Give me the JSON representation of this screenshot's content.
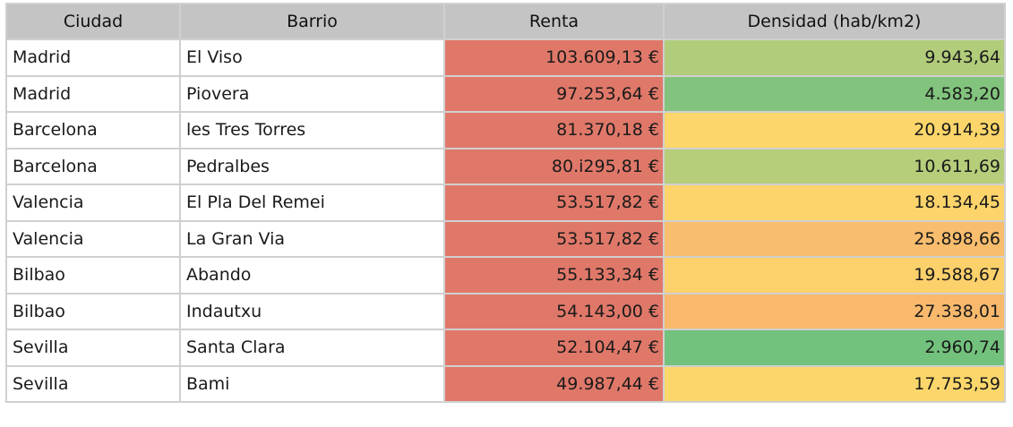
{
  "table": {
    "headers": [
      "Ciudad",
      "Barrio",
      "Renta",
      "Densidad (hab/km2)"
    ],
    "rows": [
      {
        "ciudad": "Madrid",
        "barrio": "El Viso",
        "renta": "103.609,13 €",
        "densidad": "9.943,64",
        "renta_color": "#e07869",
        "densidad_color": "#b1cc7a"
      },
      {
        "ciudad": "Madrid",
        "barrio": "Piovera",
        "renta": "97.253,64 €",
        "densidad": "4.583,20",
        "renta_color": "#e07869",
        "densidad_color": "#82c47d"
      },
      {
        "ciudad": "Barcelona",
        "barrio": "les Tres Torres",
        "renta": "81.370,18 €",
        "densidad": "20.914,39",
        "renta_color": "#e07869",
        "densidad_color": "#fcd66a"
      },
      {
        "ciudad": "Barcelona",
        "barrio": "Pedralbes",
        "renta": "80.i295,81 €",
        "densidad": "10.611,69",
        "renta_color": "#e07869",
        "densidad_color": "#b6cd7a"
      },
      {
        "ciudad": "Valencia",
        "barrio": "El Pla Del Remei",
        "renta": "53.517,82 €",
        "densidad": "18.134,45",
        "renta_color": "#e07869",
        "densidad_color": "#fdd46b"
      },
      {
        "ciudad": "Valencia",
        "barrio": "La Gran Via",
        "renta": "53.517,82 €",
        "densidad": "25.898,66",
        "renta_color": "#e07869",
        "densidad_color": "#f8bd6d"
      },
      {
        "ciudad": "Bilbao",
        "barrio": "Abando",
        "renta": "55.133,34 €",
        "densidad": "19.588,67",
        "renta_color": "#e07869",
        "densidad_color": "#fcd06b"
      },
      {
        "ciudad": "Bilbao",
        "barrio": "Indautxu",
        "renta": "54.143,00 €",
        "densidad": "27.338,01",
        "renta_color": "#e07869",
        "densidad_color": "#f8b96c"
      },
      {
        "ciudad": "Sevilla",
        "barrio": "Santa Clara",
        "renta": "52.104,47 €",
        "densidad": "2.960,74",
        "renta_color": "#e07869",
        "densidad_color": "#72c17c"
      },
      {
        "ciudad": "Sevilla",
        "barrio": "Bami",
        "renta": "49.987,44 €",
        "densidad": "17.753,59",
        "renta_color": "#e07869",
        "densidad_color": "#fbd76b"
      }
    ]
  }
}
